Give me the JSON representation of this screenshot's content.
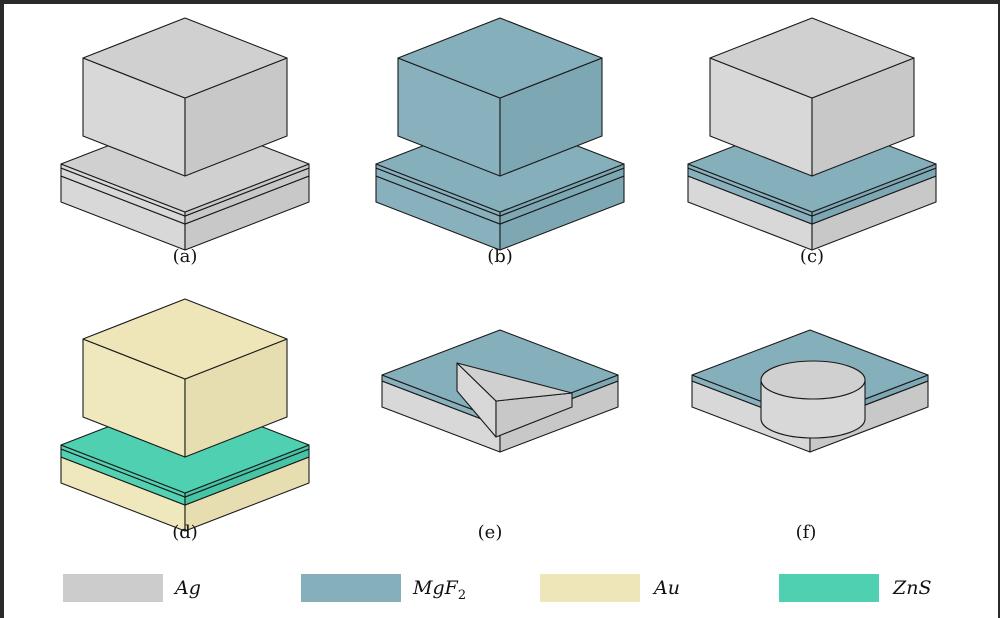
{
  "panels": [
    {
      "label": "(a)",
      "base": "Ag",
      "mid": "Ag",
      "spacer": "Ag",
      "top": "Ag",
      "shape": "box"
    },
    {
      "label": "(b)",
      "base": "MgF2",
      "mid": "MgF2",
      "spacer": "MgF2",
      "top": "MgF2",
      "shape": "box"
    },
    {
      "label": "(c)",
      "base": "Ag",
      "mid": "MgF2",
      "spacer": "MgF2",
      "top": "Ag",
      "shape": "box"
    },
    {
      "label": "(d)",
      "base": "Au",
      "mid": "ZnS",
      "spacer": "ZnS",
      "top": "Au",
      "shape": "box"
    },
    {
      "label": "(e)",
      "base": "Ag",
      "mid": "MgF2",
      "spacer": "MgF2",
      "top": "Ag",
      "shape": "triangle"
    },
    {
      "label": "(f)",
      "base": "Ag",
      "mid": "MgF2",
      "spacer": "MgF2",
      "top": "Ag",
      "shape": "cylinder"
    }
  ],
  "legend": [
    {
      "name": "Ag",
      "main": "Ag",
      "sub": "",
      "color": "#cccccc"
    },
    {
      "name": "MgF2",
      "main": "MgF",
      "sub": "2",
      "color": "#86afbc"
    },
    {
      "name": "Au",
      "main": "Au",
      "sub": "",
      "color": "#eee6b9"
    },
    {
      "name": "ZnS",
      "main": "ZnS",
      "sub": "",
      "color": "#4fd0b0"
    }
  ],
  "materials": {
    "Ag": {
      "top": "#d0d0d0",
      "left": "#d8d8d8",
      "right": "#c8c8c8"
    },
    "MgF2": {
      "top": "#86afbc",
      "left": "#88b0bd",
      "right": "#7ea7b4"
    },
    "Au": {
      "top": "#eee6b9",
      "left": "#f0e8bd",
      "right": "#e6deb0"
    },
    "ZnS": {
      "top": "#4fd0b0",
      "left": "#52d2b2",
      "right": "#46c4a5"
    }
  }
}
